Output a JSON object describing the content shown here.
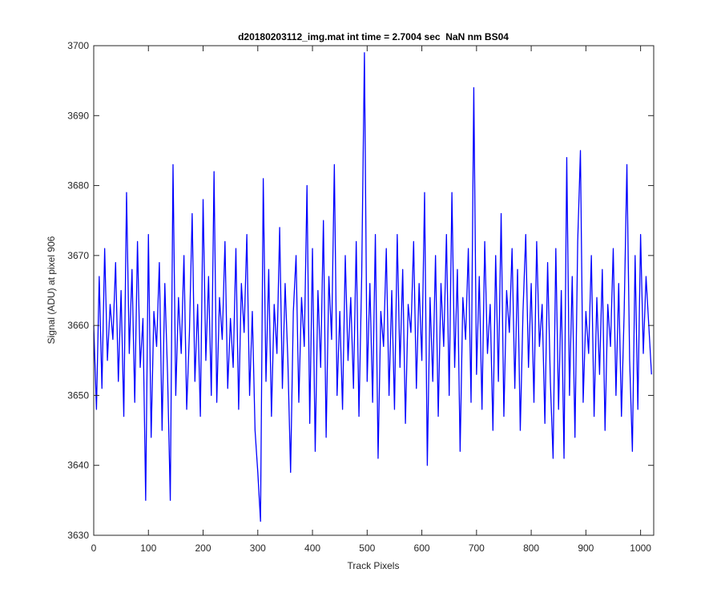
{
  "chart_data": {
    "type": "line",
    "title": "d20180203112_img.mat int time = 2.7004 sec  NaN nm BS04",
    "x_label": "Track Pixels",
    "y_label": "Signal (ADU) at pixel 906",
    "xlim": [
      0,
      1024
    ],
    "ylim": [
      3630,
      3700
    ],
    "xticks": [
      0,
      100,
      200,
      300,
      400,
      500,
      600,
      700,
      800,
      900,
      1000
    ],
    "yticks": [
      3630,
      3640,
      3650,
      3660,
      3670,
      3680,
      3690,
      3700
    ],
    "grid": false,
    "x": [
      0,
      5,
      10,
      15,
      20,
      25,
      30,
      35,
      40,
      45,
      50,
      55,
      60,
      65,
      70,
      75,
      80,
      85,
      90,
      95,
      100,
      105,
      110,
      115,
      120,
      125,
      130,
      135,
      140,
      145,
      150,
      155,
      160,
      165,
      170,
      175,
      180,
      185,
      190,
      195,
      200,
      205,
      210,
      215,
      220,
      225,
      230,
      235,
      240,
      245,
      250,
      255,
      260,
      265,
      270,
      275,
      280,
      285,
      290,
      295,
      300,
      305,
      310,
      315,
      320,
      325,
      330,
      335,
      340,
      345,
      350,
      355,
      360,
      365,
      370,
      375,
      380,
      385,
      390,
      395,
      400,
      405,
      410,
      415,
      420,
      425,
      430,
      435,
      440,
      445,
      450,
      455,
      460,
      465,
      470,
      475,
      480,
      485,
      490,
      495,
      500,
      505,
      510,
      515,
      520,
      525,
      530,
      535,
      540,
      545,
      550,
      555,
      560,
      565,
      570,
      575,
      580,
      585,
      590,
      595,
      600,
      605,
      610,
      615,
      620,
      625,
      630,
      635,
      640,
      645,
      650,
      655,
      660,
      665,
      670,
      675,
      680,
      685,
      690,
      695,
      700,
      705,
      710,
      715,
      720,
      725,
      730,
      735,
      740,
      745,
      750,
      755,
      760,
      765,
      770,
      775,
      780,
      785,
      790,
      795,
      800,
      805,
      810,
      815,
      820,
      825,
      830,
      835,
      840,
      845,
      850,
      855,
      860,
      865,
      870,
      875,
      880,
      885,
      890,
      895,
      900,
      905,
      910,
      915,
      920,
      925,
      930,
      935,
      940,
      945,
      950,
      955,
      960,
      965,
      970,
      975,
      980,
      985,
      990,
      995,
      1000,
      1005,
      1010,
      1015,
      1020
    ],
    "series": [
      {
        "color": "#0000ff",
        "values": [
          3660,
          3648,
          3667,
          3651,
          3671,
          3655,
          3663,
          3658,
          3669,
          3652,
          3665,
          3647,
          3679,
          3656,
          3668,
          3649,
          3672,
          3654,
          3661,
          3635,
          3673,
          3644,
          3662,
          3657,
          3669,
          3645,
          3666,
          3653,
          3635,
          3683,
          3650,
          3664,
          3656,
          3670,
          3648,
          3659,
          3676,
          3652,
          3663,
          3647,
          3678,
          3655,
          3667,
          3650,
          3682,
          3649,
          3664,
          3658,
          3672,
          3651,
          3661,
          3654,
          3671,
          3648,
          3666,
          3659,
          3673,
          3650,
          3662,
          3645,
          3639,
          3632,
          3681,
          3652,
          3668,
          3647,
          3663,
          3656,
          3674,
          3651,
          3666,
          3655,
          3639,
          3662,
          3670,
          3649,
          3664,
          3657,
          3680,
          3646,
          3671,
          3642,
          3665,
          3654,
          3675,
          3644,
          3667,
          3658,
          3683,
          3650,
          3662,
          3648,
          3670,
          3655,
          3664,
          3651,
          3672,
          3647,
          3667,
          3699,
          3652,
          3666,
          3649,
          3673,
          3641,
          3662,
          3657,
          3671,
          3650,
          3665,
          3648,
          3673,
          3654,
          3668,
          3646,
          3663,
          3659,
          3672,
          3651,
          3666,
          3655,
          3679,
          3640,
          3664,
          3652,
          3670,
          3647,
          3666,
          3657,
          3673,
          3650,
          3679,
          3654,
          3668,
          3642,
          3664,
          3658,
          3671,
          3649,
          3694,
          3653,
          3667,
          3648,
          3672,
          3656,
          3663,
          3645,
          3670,
          3652,
          3676,
          3647,
          3665,
          3659,
          3671,
          3651,
          3668,
          3645,
          3662,
          3673,
          3654,
          3666,
          3649,
          3672,
          3657,
          3663,
          3646,
          3669,
          3652,
          3641,
          3671,
          3648,
          3665,
          3641,
          3684,
          3650,
          3667,
          3644,
          3672,
          3685,
          3649,
          3662,
          3656,
          3670,
          3647,
          3664,
          3653,
          3668,
          3645,
          3663,
          3657,
          3671,
          3650,
          3666,
          3647,
          3662,
          3683,
          3655,
          3642,
          3670,
          3648,
          3673,
          3656,
          3667,
          3660,
          3653
        ]
      }
    ]
  }
}
